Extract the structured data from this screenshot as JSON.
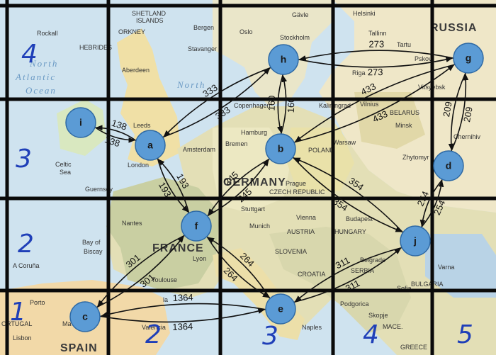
{
  "diagram": {
    "nodes": [
      {
        "id": "a",
        "label": "a"
      },
      {
        "id": "b",
        "label": "b"
      },
      {
        "id": "c",
        "label": "c"
      },
      {
        "id": "d",
        "label": "d"
      },
      {
        "id": "e",
        "label": "e"
      },
      {
        "id": "f",
        "label": "f"
      },
      {
        "id": "g",
        "label": "g"
      },
      {
        "id": "h",
        "label": "h"
      },
      {
        "id": "i",
        "label": "i"
      },
      {
        "id": "j",
        "label": "j"
      }
    ],
    "edges": [
      {
        "from": "g",
        "to": "h",
        "weight": "273"
      },
      {
        "from": "h",
        "to": "g",
        "weight": "273"
      },
      {
        "from": "g",
        "to": "b",
        "weight": "433"
      },
      {
        "from": "b",
        "to": "g",
        "weight": "433"
      },
      {
        "from": "g",
        "to": "d",
        "weight": "209"
      },
      {
        "from": "d",
        "to": "g",
        "weight": "209"
      },
      {
        "from": "h",
        "to": "a",
        "weight": "333"
      },
      {
        "from": "a",
        "to": "h",
        "weight": "333"
      },
      {
        "from": "h",
        "to": "b",
        "weight": "160"
      },
      {
        "from": "b",
        "to": "h",
        "weight": "160"
      },
      {
        "from": "a",
        "to": "i",
        "weight": "138"
      },
      {
        "from": "i",
        "to": "a",
        "weight": "138"
      },
      {
        "from": "a",
        "to": "f",
        "weight": "193"
      },
      {
        "from": "f",
        "to": "a",
        "weight": "193"
      },
      {
        "from": "b",
        "to": "f",
        "weight": "245"
      },
      {
        "from": "f",
        "to": "b",
        "weight": "245"
      },
      {
        "from": "b",
        "to": "j",
        "weight": "354"
      },
      {
        "from": "j",
        "to": "b",
        "weight": "354"
      },
      {
        "from": "d",
        "to": "j",
        "weight": "254"
      },
      {
        "from": "j",
        "to": "d",
        "weight": "254"
      },
      {
        "from": "f",
        "to": "c",
        "weight": "301"
      },
      {
        "from": "c",
        "to": "f",
        "weight": "301"
      },
      {
        "from": "f",
        "to": "e",
        "weight": "264"
      },
      {
        "from": "e",
        "to": "f",
        "weight": "264"
      },
      {
        "from": "c",
        "to": "e",
        "weight": "1364"
      },
      {
        "from": "e",
        "to": "c",
        "weight": "1364"
      },
      {
        "from": "e",
        "to": "j",
        "weight": "311"
      },
      {
        "from": "j",
        "to": "e",
        "weight": "311"
      }
    ]
  },
  "grid": {
    "column_numbers": [
      "1",
      "2",
      "3",
      "4",
      "5"
    ],
    "row_numbers": [
      "4",
      "3",
      "2"
    ]
  },
  "map_labels": {
    "russia": "RUSSIA",
    "france": "FRANCE",
    "germany": "GERMANY",
    "spain": "SPAIN",
    "poland": "POLAND",
    "belarus": "BELARUS",
    "ortugal": "ORTUGAL",
    "bulgaria": "BULGARIA",
    "greece": "GREECE",
    "serbia": "SERBIA",
    "croatia": "CROATIA",
    "austria": "AUSTRIA",
    "hungary": "HUNGARY",
    "czech": "CZECH REPUBLIC",
    "slovenia": "SLOVENIA",
    "north": "North",
    "atlantic": "Atlantic",
    "ocean": "Ocean",
    "north_sea": "North",
    "celtic": "Celtic",
    "sea": "Sea",
    "bay_of": "Bay of",
    "biscay": "Biscay",
    "hebrides": "HEBRIDES",
    "rockall": "Rockall",
    "shetland": "SHETLAND",
    "islands": "ISLANDS",
    "orkney": "ORKNEY",
    "bergen": "Bergen",
    "stavanger": "Stavanger",
    "aberdeen": "Aberdeen",
    "leeds": "Leeds",
    "london": "London",
    "amsterdam": "Amsterdam",
    "oslo": "Oslo",
    "stockholm": "Stockholm",
    "helsinki": "Helsinki",
    "tallinn": "Tallinn",
    "riga": "Riga",
    "gavle": "Gävle",
    "copenhagen": "Copenhagen",
    "hamburg": "Hamburg",
    "bremen": "Bremen",
    "kaliningrad": "Kaliningrad",
    "vilnius": "Vilnius",
    "minsk": "Minsk",
    "warsaw": "Warsaw",
    "prague": "Prague",
    "vienna": "Vienna",
    "budapest": "Budapest",
    "belgrade": "Belgrade",
    "sofia": "Sofia",
    "varna": "Varna",
    "naples": "Naples",
    "nantes": "Nantes",
    "lyon": "Lyon",
    "toulouse": "Toulouse",
    "stuttgart": "Stuttgart",
    "munich": "Munich",
    "a_coruna": "A Coruña",
    "porto": "Porto",
    "lisbon": "Lisbon",
    "madrid": "Ma",
    "valencia": "Valencia",
    "la": "la",
    "guernsey": "Guernsey",
    "zhytomyr": "Zhytomyr",
    "chernihiv": "Chernihiv",
    "vitsyebsk": "Vitsyebsk",
    "pskov": "Pskov",
    "tartu": "Tartu",
    "sweden_gavle": "Gävle",
    "podgorica": "Podgorica",
    "skopje": "Skopje",
    "mace": "MACE."
  }
}
